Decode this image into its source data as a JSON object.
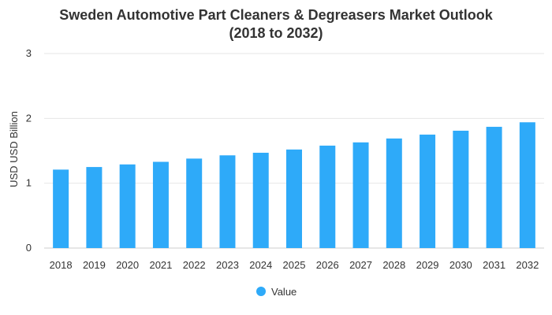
{
  "chart_data": {
    "type": "bar",
    "title_line1": "Sweden Automotive Part Cleaners & Degreasers Market Outlook",
    "title_line2": "(2018 to 2032)",
    "xlabel": "",
    "ylabel": "USD USD Billion",
    "ylim": [
      0,
      3
    ],
    "yticks": [
      0,
      1,
      2,
      3
    ],
    "categories": [
      "2018",
      "2019",
      "2020",
      "2021",
      "2022",
      "2023",
      "2024",
      "2025",
      "2026",
      "2027",
      "2028",
      "2029",
      "2030",
      "2031",
      "2032"
    ],
    "series": [
      {
        "name": "Value",
        "color": "#2eaaf9",
        "values": [
          1.21,
          1.25,
          1.29,
          1.33,
          1.38,
          1.43,
          1.47,
          1.52,
          1.58,
          1.63,
          1.69,
          1.75,
          1.81,
          1.87,
          1.94
        ]
      }
    ],
    "grid": true,
    "gridColor": "#e6e6e6",
    "legend_position": "bottom-center"
  }
}
